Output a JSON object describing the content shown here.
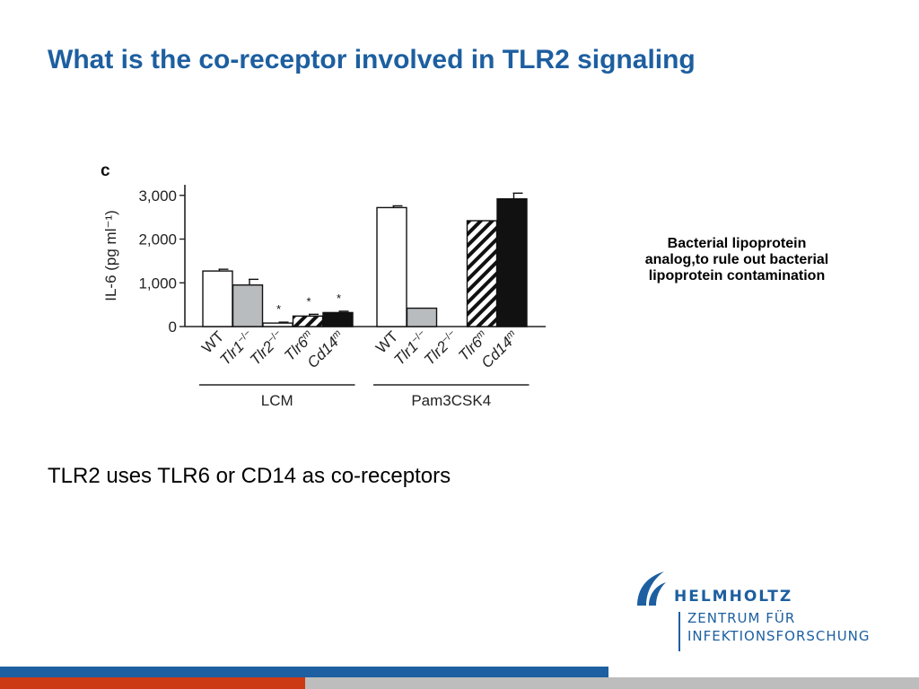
{
  "slide": {
    "title": "What is the co-receptor involved in TLR2 signaling",
    "side_note": "Bacterial lipoprotein analog,to rule out bacterial lipoprotein contamination",
    "conclusion": "TLR2 uses  TLR6 or CD14 as co-receptors"
  },
  "logo": {
    "name": "HELMHOLTZ",
    "line1": "ZENTRUM FÜR",
    "line2": "INFEKTIONSFORSCHUNG",
    "icon": "helmholtz-wave-icon"
  },
  "colors": {
    "title": "#1d5fa0",
    "footer_blue": "#1d5fa0",
    "footer_red": "#cc3a14",
    "footer_gray": "#bdbdbd"
  },
  "chart_data": {
    "type": "bar",
    "panel_label": "c",
    "ylabel": "IL-6 (pg ml⁻¹)",
    "ylim": [
      0,
      3200
    ],
    "yticks": [
      0,
      1000,
      2000,
      3000
    ],
    "ytick_labels": [
      "0",
      "1,000",
      "2,000",
      "3,000"
    ],
    "groups": [
      {
        "name": "LCM",
        "bars": [
          {
            "label": "WT",
            "label_base": "WT",
            "label_sup": "",
            "value": 1270,
            "error": 40,
            "fill": "white",
            "significant": false
          },
          {
            "label": "Tlr1−/−",
            "label_base": "Tlr1",
            "label_sup": "−/−",
            "value": 950,
            "error": 130,
            "fill": "gray",
            "significant": false
          },
          {
            "label": "Tlr2−/−",
            "label_base": "Tlr2",
            "label_sup": "−/−",
            "value": 80,
            "error": 20,
            "fill": "white",
            "significant": true
          },
          {
            "label": "Tlr6m",
            "label_base": "Tlr6",
            "label_sup": "m",
            "value": 240,
            "error": 40,
            "fill": "hatched",
            "significant": true
          },
          {
            "label": "Cd14m",
            "label_base": "Cd14",
            "label_sup": "m",
            "value": 320,
            "error": 30,
            "fill": "black",
            "significant": true
          }
        ]
      },
      {
        "name": "Pam3CSK4",
        "bars": [
          {
            "label": "WT",
            "label_base": "WT",
            "label_sup": "",
            "value": 2720,
            "error": 40,
            "fill": "white",
            "significant": false
          },
          {
            "label": "Tlr1−/−",
            "label_base": "Tlr1",
            "label_sup": "−/−",
            "value": 420,
            "error": 0,
            "fill": "gray",
            "significant": false
          },
          {
            "label": "Tlr2−/−",
            "label_base": "Tlr2",
            "label_sup": "−/−",
            "value": 0,
            "error": 0,
            "fill": "white",
            "significant": false
          },
          {
            "label": "Tlr6m",
            "label_base": "Tlr6",
            "label_sup": "m",
            "value": 2420,
            "error": 0,
            "fill": "hatched",
            "significant": false
          },
          {
            "label": "Cd14m",
            "label_base": "Cd14",
            "label_sup": "m",
            "value": 2920,
            "error": 130,
            "fill": "black",
            "significant": false
          }
        ]
      }
    ],
    "significance_marker": "*",
    "grid": false,
    "legend": "none"
  }
}
